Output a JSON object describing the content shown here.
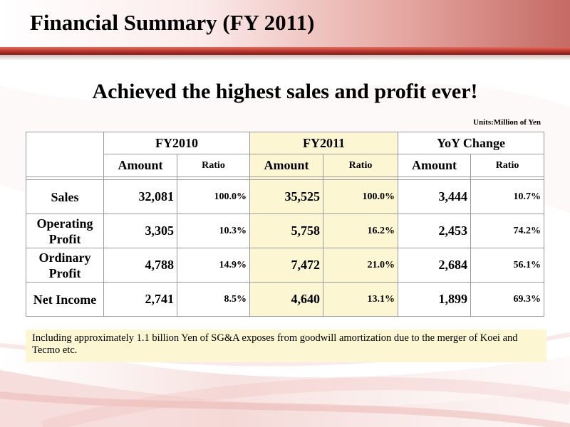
{
  "title": "Financial Summary (FY 2011)",
  "subtitle": "Achieved the highest sales and profit ever!",
  "units": "Units:Million of Yen",
  "table": {
    "groups": [
      "FY2010",
      "FY2011",
      "YoY Change"
    ],
    "subheaders": {
      "amount": "Amount",
      "ratio": "Ratio"
    },
    "rows": [
      {
        "label": "Sales",
        "fy2010_amount": "32,081",
        "fy2010_ratio": "100.0%",
        "fy2011_amount": "35,525",
        "fy2011_ratio": "100.0%",
        "yoy_amount": "3,444",
        "yoy_ratio": "10.7%"
      },
      {
        "label": "Operating Profit",
        "fy2010_amount": "3,305",
        "fy2010_ratio": "10.3%",
        "fy2011_amount": "5,758",
        "fy2011_ratio": "16.2%",
        "yoy_amount": "2,453",
        "yoy_ratio": "74.2%"
      },
      {
        "label": "Ordinary Profit",
        "fy2010_amount": "4,788",
        "fy2010_ratio": "14.9%",
        "fy2011_amount": "7,472",
        "fy2011_ratio": "21.0%",
        "yoy_amount": "2,684",
        "yoy_ratio": "56.1%"
      },
      {
        "label": "Net Income",
        "fy2010_amount": "2,741",
        "fy2010_ratio": "8.5%",
        "fy2011_amount": "4,640",
        "fy2011_ratio": "13.1%",
        "yoy_amount": "1,899",
        "yoy_ratio": "69.3%"
      }
    ]
  },
  "note": "Including approximately 1.1 billion Yen of SG&A exposes from goodwill amortization due to the merger of Koei and Tecmo etc.",
  "colors": {
    "accent_red": "#b8332b",
    "highlight": "#fdf6d3",
    "grid": "#9a9a9a"
  }
}
